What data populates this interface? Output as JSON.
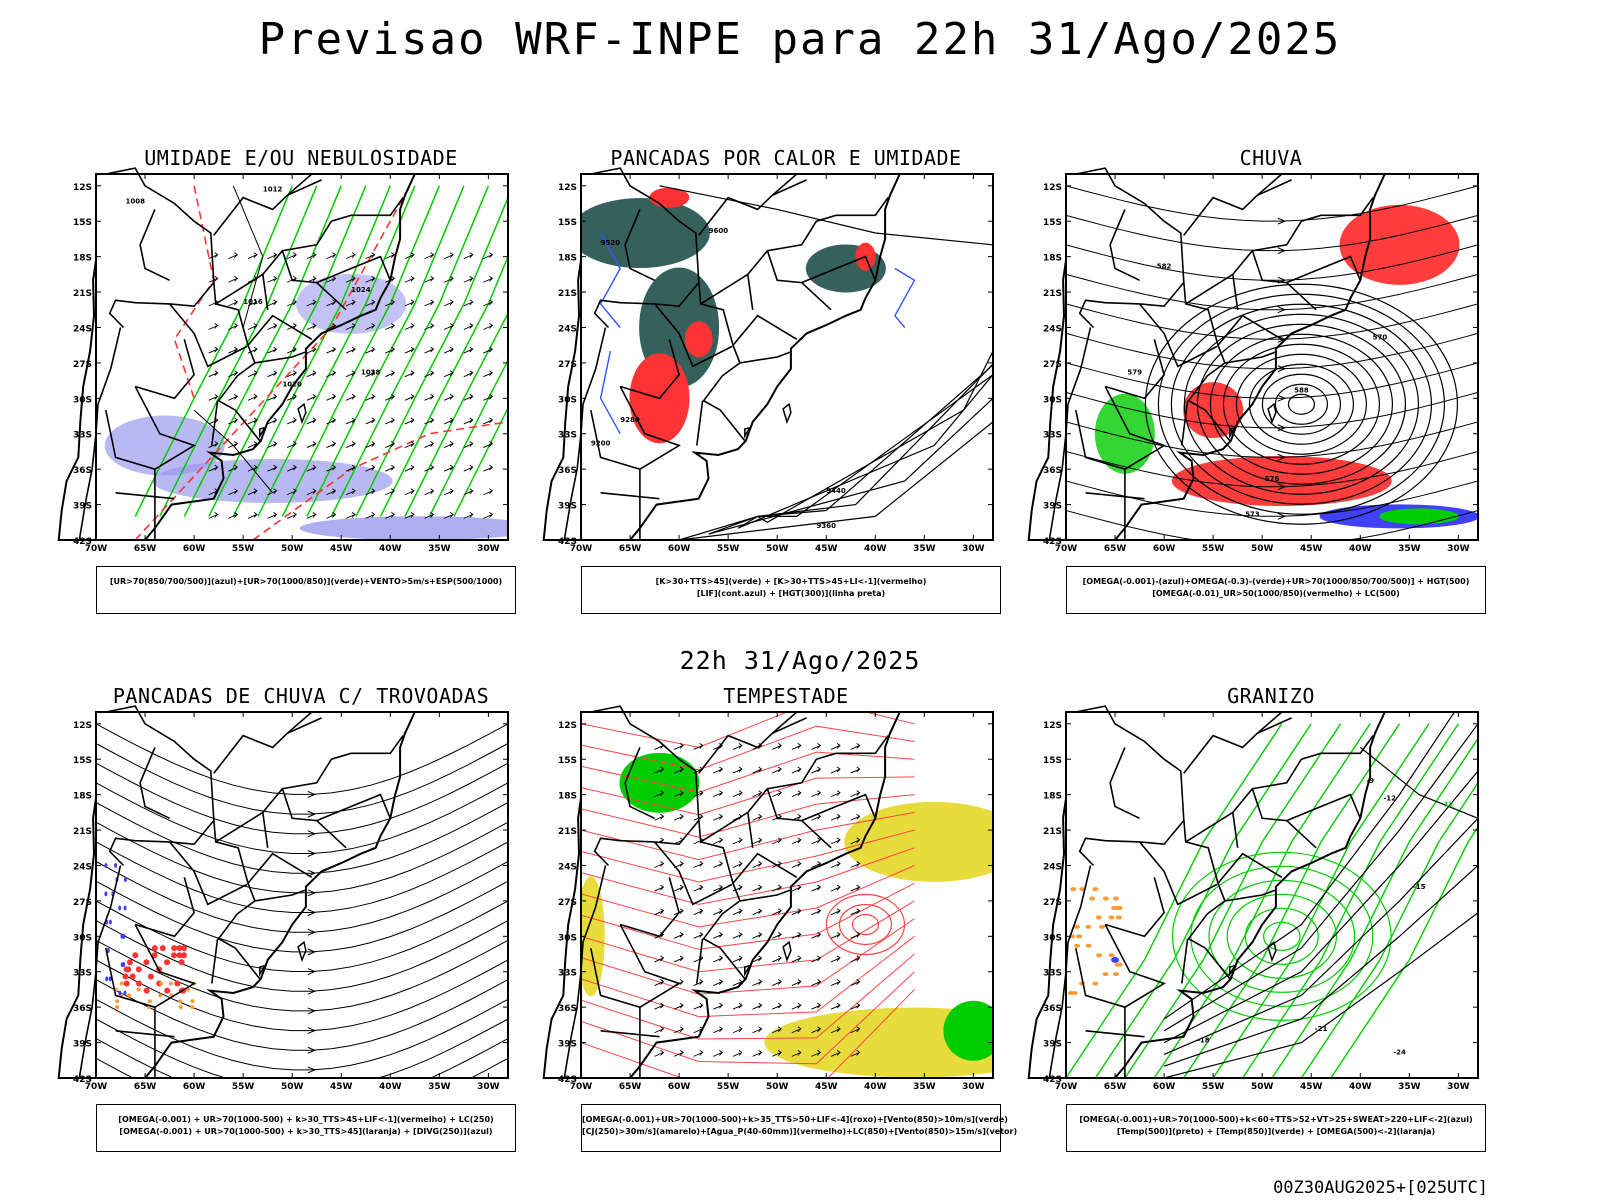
{
  "title": "Previsao WRF-INPE  para 22h 31/Ago/2025",
  "mid_date": "22h 31/Ago/2025",
  "footer": "00Z30AUG2025+[025UTC]",
  "axes": {
    "lat_labels": [
      "12S",
      "15S",
      "18S",
      "21S",
      "24S",
      "27S",
      "30S",
      "33S",
      "36S",
      "39S",
      "42S"
    ],
    "lon_labels": [
      "70W",
      "65W",
      "60W",
      "55W",
      "50W",
      "45W",
      "40W",
      "35W",
      "30W"
    ]
  },
  "colors": {
    "blue": "#4040ff",
    "green": "#00cc00",
    "red": "#ff3333",
    "yellow": "#e8dc3c",
    "darkteal": "#1f4f4a",
    "orange": "#ff9933",
    "lavender": "#9a9aee"
  },
  "panels": [
    {
      "title": "UMIDADE E/OU NEBULOSIDADE",
      "legend": [
        "[UR>70(850/700/500)](azul)+[UR>70(1000/850)](verde)+VENTO>5m/s+ESP(500/1000)"
      ],
      "contour_labels": [
        "1008",
        "1012",
        "1016",
        "1020",
        "1024",
        "1028"
      ]
    },
    {
      "title": "PANCADAS POR CALOR E UMIDADE",
      "legend": [
        "[K>30+TTS>45](verde) + [K>30+TTS>45+LI<-1](vermelho)",
        "[LIF](cont.azul) + [HGT(300)](linha preta)"
      ],
      "contour_labels": [
        "9600",
        "9520",
        "9440",
        "9360",
        "9280",
        "9200"
      ]
    },
    {
      "title": "CHUVA",
      "legend": [
        "[OMEGA(-0.001)-(azul)+OMEGA(-0.3)-(verde)+UR>70(1000/850/700/500)] + HGT(500)",
        "[OMEGA(-0.01)_UR>50(1000/850)(vermelho) + LC(500)"
      ],
      "contour_labels": [
        "582",
        "579",
        "576",
        "573",
        "570",
        "588"
      ]
    },
    {
      "title": "PANCADAS DE CHUVA C/ TROVOADAS",
      "legend": [
        "[OMEGA(-0.001) + UR>70(1000-500) + k>30_TTS>45+LIF<-1](vermelho) + LC(250)",
        "[OMEGA(-0.001) + UR>70(1000-500) + k>30_TTS>45](laranja) + [DIVG(250)](azul)"
      ],
      "contour_labels": []
    },
    {
      "title": "TEMPESTADE",
      "legend": [
        "[OMEGA(-0.001)+UR>70(1000-500)+k>35_TTS>50+LIF<-4](roxo)+[Vento(850)>10m/s](verde)",
        "[CJ(250)>30m/s](amarelo)+[Agua_P(40-60mm)](vermelho)+LC(850)+[Vento(850)>15m/s](vetor)"
      ],
      "contour_labels": []
    },
    {
      "title": "GRANIZO",
      "legend": [
        "[OMEGA(-0.001)+UR>70(1000-500)+k<60+TTS>52+VT>25+SWEAT>220+LIF<-2](azul)",
        "[Temp(500)](preto) + [Temp(850)](verde) + [OMEGA(500)<-2](laranja)"
      ],
      "contour_labels": [
        "-9",
        "-12",
        "-15",
        "-18",
        "-21",
        "-24",
        "12"
      ]
    }
  ]
}
